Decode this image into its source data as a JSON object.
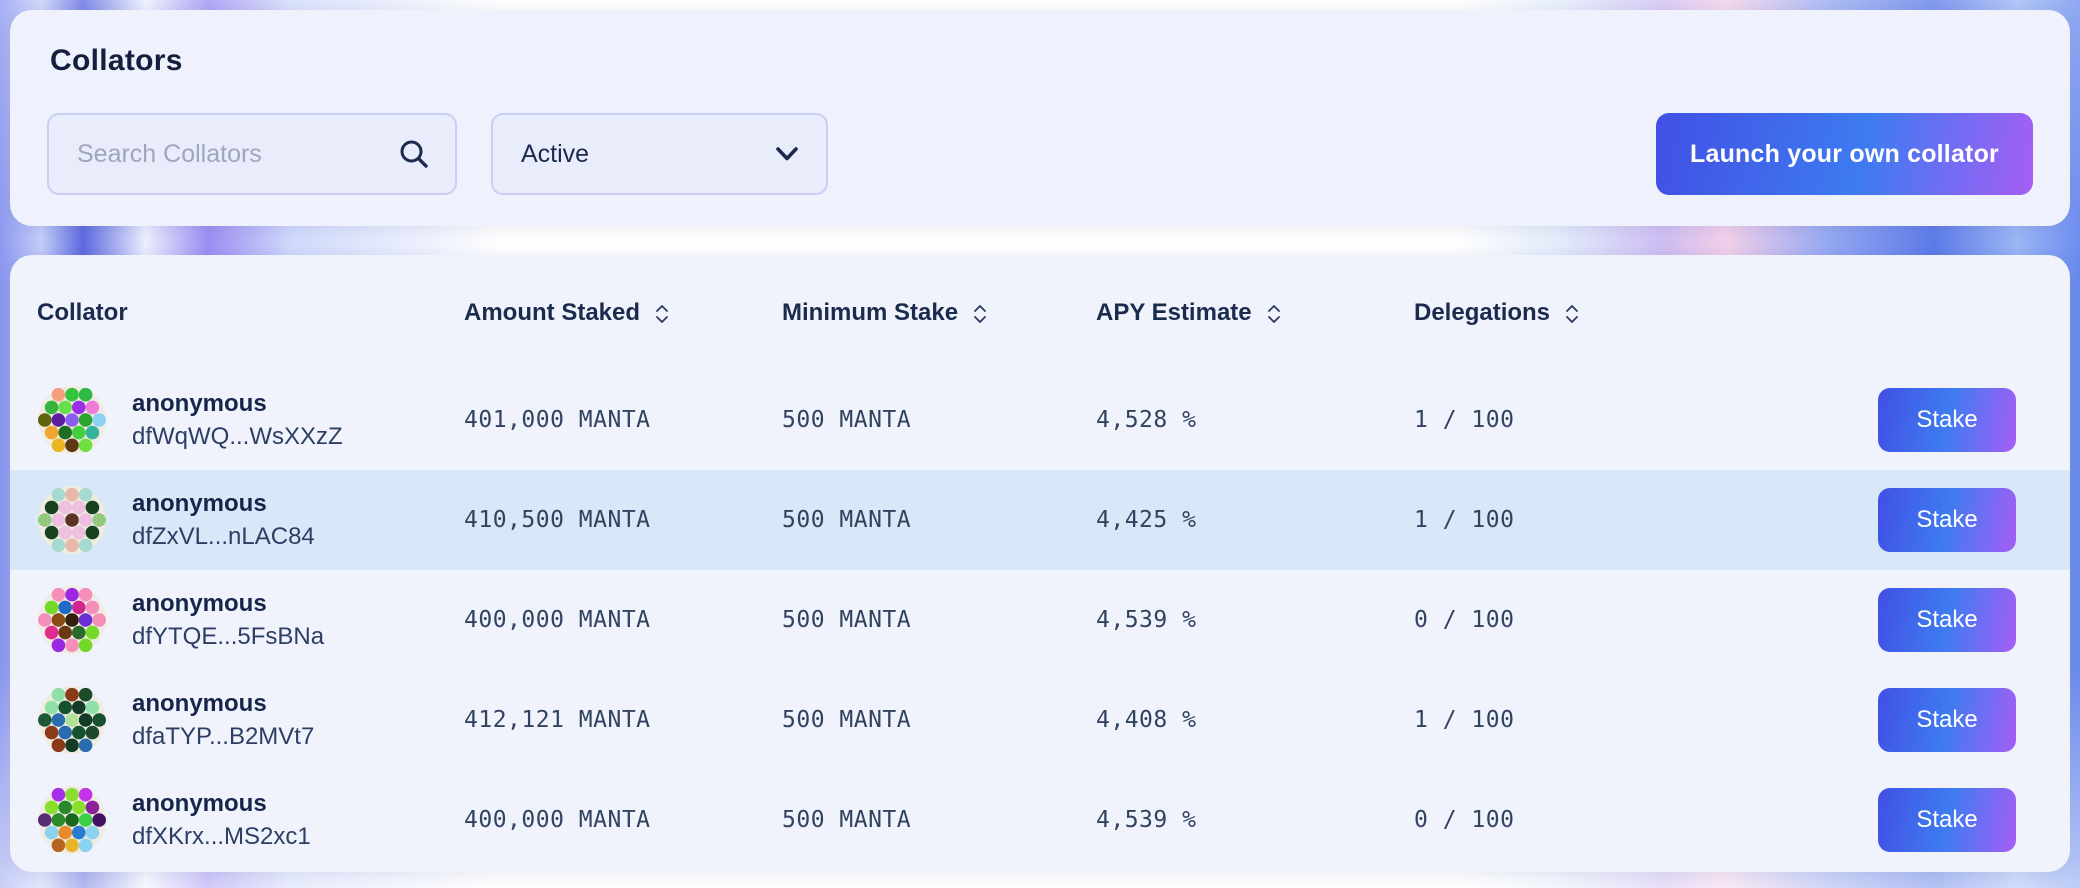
{
  "header": {
    "title": "Collators",
    "search": {
      "placeholder": "Search Collators"
    },
    "filter": {
      "value": "Active"
    },
    "launch_button_label": "Launch your own collator"
  },
  "table": {
    "columns": [
      {
        "label": "Collator",
        "sortable": false
      },
      {
        "label": "Amount Staked",
        "sortable": true
      },
      {
        "label": "Minimum Stake",
        "sortable": true
      },
      {
        "label": "APY Estimate",
        "sortable": true
      },
      {
        "label": "Delegations",
        "sortable": true
      }
    ],
    "stake_button_label": "Stake",
    "rows": [
      {
        "name": "anonymous",
        "address": "dfWqWQ...WsXXzZ",
        "amount_staked": "401,000 MANTA",
        "minimum_stake": "500 MANTA",
        "apy_estimate": "4,528 %",
        "delegations": "1 / 100",
        "highlighted": false,
        "avatar_colors": [
          "#f59e7d",
          "#35c33b",
          "#2fb944",
          "#38b43d",
          "#66e04a",
          "#9b2fe8",
          "#ef7bd9",
          "#5f610f",
          "#5a1fa0",
          "#8d5cf2",
          "#2aa42d",
          "#8bd3f3",
          "#f0a52f",
          "#1f6f22",
          "#41cf3c",
          "#33b29c",
          "#e9b520",
          "#5d3a13",
          "#70df3d"
        ]
      },
      {
        "name": "anonymous",
        "address": "dfZxVL...nLAC84",
        "amount_staked": "410,500 MANTA",
        "minimum_stake": "500 MANTA",
        "apy_estimate": "4,425 %",
        "delegations": "1 / 100",
        "highlighted": true,
        "avatar_colors": [
          "#a7dbd1",
          "#e6b8a5",
          "#a7dbd1",
          "#16441e",
          "#eec0df",
          "#eec0df",
          "#16441e",
          "#94c87f",
          "#eec0df",
          "#5c3423",
          "#eec0df",
          "#94c87f",
          "#16441e",
          "#eec0df",
          "#eec0df",
          "#16441e",
          "#a7dbd1",
          "#e6b8a5",
          "#a7dbd1"
        ]
      },
      {
        "name": "anonymous",
        "address": "dfYTQE...5FsBNa",
        "amount_staked": "400,000 MANTA",
        "minimum_stake": "500 MANTA",
        "apy_estimate": "4,539 %",
        "delegations": "0 / 100",
        "highlighted": false,
        "avatar_colors": [
          "#f48fb8",
          "#9c27e0",
          "#f48fb8",
          "#74d828",
          "#2268c4",
          "#d02890",
          "#f48fb8",
          "#f48fb8",
          "#8a4a16",
          "#30200d",
          "#6b2fd6",
          "#f48fb8",
          "#e02c8c",
          "#6b3a13",
          "#2a6b2a",
          "#74d828",
          "#9c27e0",
          "#f48fb8",
          "#74d828"
        ]
      },
      {
        "name": "anonymous",
        "address": "dfaTYP...B2MVt7",
        "amount_staked": "412,121 MANTA",
        "minimum_stake": "500 MANTA",
        "apy_estimate": "4,408 %",
        "delegations": "1 / 100",
        "highlighted": false,
        "avatar_colors": [
          "#8fdfa9",
          "#8a3a18",
          "#1d4a2a",
          "#8fdfa9",
          "#175230",
          "#143b25",
          "#8fdfa9",
          "#1d5a33",
          "#2a6cb0",
          "#b2e096",
          "#143b25",
          "#175230",
          "#8a3a18",
          "#2a6cb0",
          "#175230",
          "#1d4a2a",
          "#8a3a18",
          "#143b25",
          "#2a6cb0"
        ]
      },
      {
        "name": "anonymous",
        "address": "dfXKrx...MS2xc1",
        "amount_staked": "400,000 MANTA",
        "minimum_stake": "500 MANTA",
        "apy_estimate": "4,539 %",
        "delegations": "0 / 100",
        "highlighted": false,
        "avatar_colors": [
          "#a62ee8",
          "#88df2c",
          "#c232e8",
          "#88df2c",
          "#2a8a2b",
          "#88df2c",
          "#8a2398",
          "#5a2a72",
          "#2a8a2b",
          "#1a661d",
          "#3ccf4a",
          "#431063",
          "#8ad2f0",
          "#e78a2a",
          "#2a7bd2",
          "#8ad2f0",
          "#b5651d",
          "#e7b32a",
          "#8ad2f0"
        ]
      }
    ]
  },
  "icons": {
    "search": "magnifier",
    "filter": "chevron-down",
    "sort": "sort-up-down-chevrons"
  },
  "colors": {
    "gradient_start": "#4150e4",
    "gradient_mid": "#3e7bf0",
    "gradient_end": "#a55ef5",
    "row_highlight": "#d9e8f8",
    "panel_bg": "#eff2fc",
    "table_bg": "#f0f3fb",
    "text_value": "#31435f"
  }
}
